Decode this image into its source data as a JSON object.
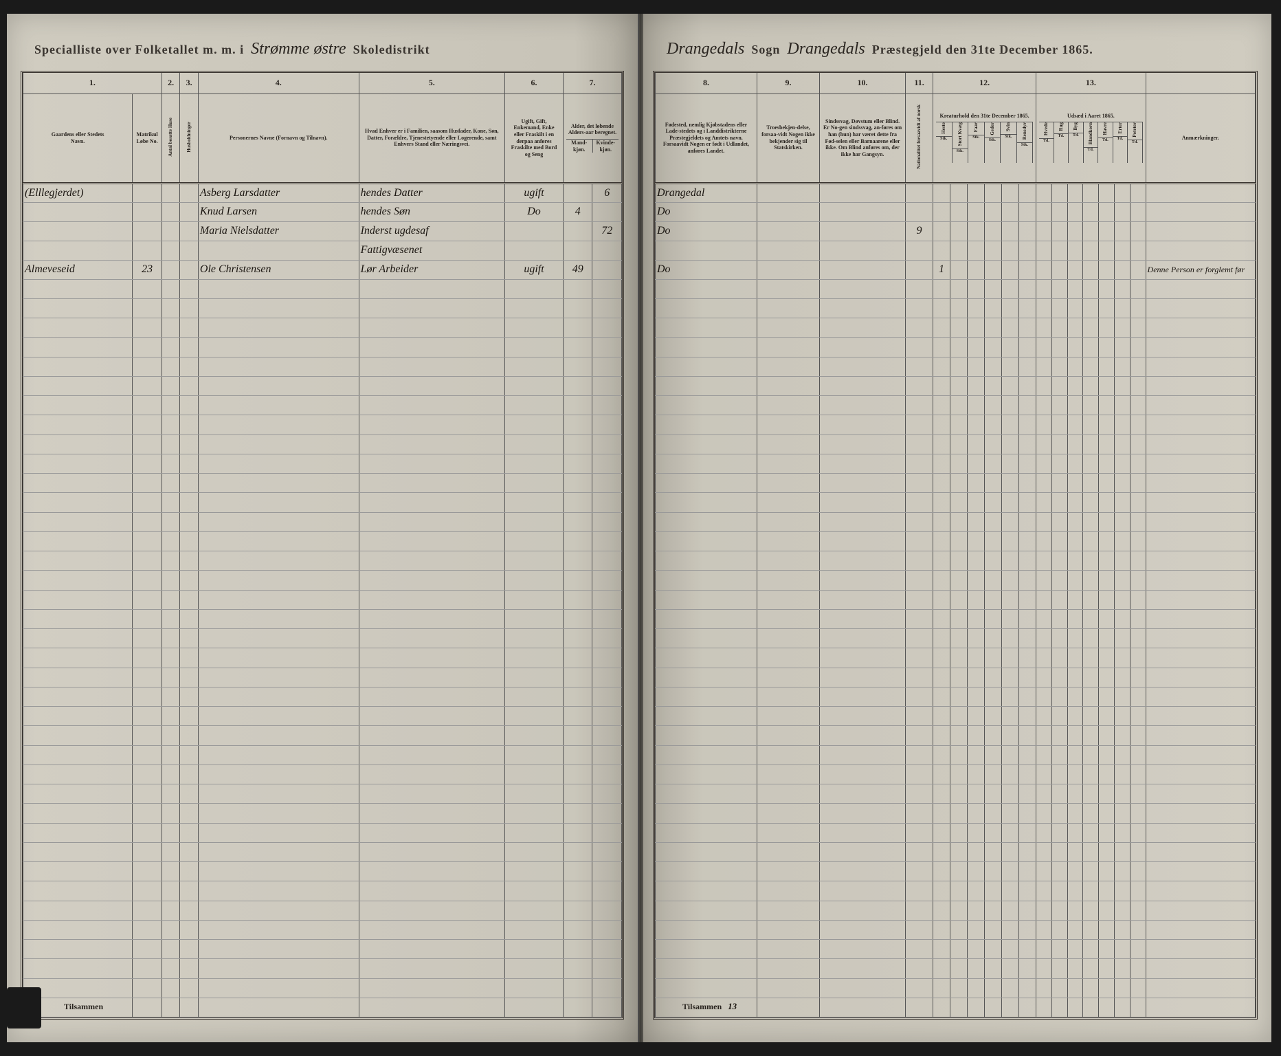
{
  "header_left": {
    "label1": "Specialliste over Folketallet m. m. i",
    "district": "Strømme østre",
    "label2": "Skoledistrikt"
  },
  "header_right": {
    "sogn": "Drangedals",
    "label1": "Sogn",
    "prestegjeld": "Drangedals",
    "label2": "Præstegjeld den 31te December 1865."
  },
  "columns_left": {
    "c1": "1.",
    "c2": "2.",
    "c3": "3.",
    "c4": "4.",
    "c5": "5.",
    "c6": "6.",
    "c7": "7.",
    "h1a": "Gaardens eller Stedets",
    "h1b": "Navn.",
    "h1c": "Matrikul Løbe No.",
    "h2": "Antal bosatte Huse",
    "h3": "Husholdninger",
    "h4": "Personernes Navne (Fornavn og Tilnavn).",
    "h5": "Hvad Enhver er i Familien, saasom Husfader, Kone, Søn, Datter, Forældre, Tjenestetyende eller Logerende, samt Enhvers Stand eller Næringsvei.",
    "h6": "Ugift, Gift, Enkemand, Enke eller Fraskilt i en derpaa anføres Fraskilte med Bord og Seng",
    "h7": "Alder, det løbende Alders-aar beregnet.",
    "h7a": "Mand-kjøn.",
    "h7b": "Kvinde-kjøn."
  },
  "columns_right": {
    "c8": "8.",
    "c9": "9.",
    "c10": "10.",
    "c11": "11.",
    "c12": "12.",
    "c13": "13.",
    "h8": "Fødested, nemlig Kjøbstadens eller Lade-stedets og i Landdistrikterne Præstegjeldets og Amtets navn. Forsaavidt Nogen er født i Udlandet, anføres Landet.",
    "h9": "Troesbekjen-delse, forsaa-vidt Nogen ikke bekjender sig til Statskirken.",
    "h10": "Sindssvag, Døvstum eller Blind. Er No-gen sindssvag, an-føres om han (hun) har været dette fra Fød-selen eller Barnaarene eller ikke. Om Blind anføres om, der ikke har Gangsyn.",
    "h11": "Nationalitet forsaavidt af norsk",
    "h12": "Kreaturhold den 31te December 1865.",
    "h13": "Udsæd i Aaret 1865.",
    "h14": "Anmærkninger.",
    "livestock": [
      "Heste",
      "Stort Kvæg",
      "Faar",
      "Geder",
      "Svin",
      "Rensdyr"
    ],
    "crops": [
      "Hvede",
      "Rug",
      "Byg",
      "Blandkorn",
      "Havre",
      "Erter",
      "Poteter"
    ]
  },
  "rows": [
    {
      "farm": "(Elllegjerdet)",
      "mat": "",
      "h": "",
      "hh": "",
      "name": "Asberg Larsdatter",
      "rel": "hendes Datter",
      "stat": "ugift",
      "m": "",
      "k": "6",
      "birth": "Drangedal",
      "note": ""
    },
    {
      "farm": "",
      "mat": "",
      "h": "",
      "hh": "",
      "name": "Knud Larsen",
      "rel": "hendes Søn",
      "stat": "Do",
      "m": "4",
      "k": "",
      "birth": "Do",
      "note": ""
    },
    {
      "farm": "",
      "mat": "",
      "h": "",
      "hh": "",
      "name": "Maria Nielsdatter",
      "rel": "Inderst ugdesaf",
      "stat": "",
      "m": "",
      "k": "72",
      "birth": "Do",
      "c11": "9",
      "note": ""
    },
    {
      "farm": "",
      "mat": "",
      "h": "",
      "hh": "",
      "name": "",
      "rel": "Fattigvæsenet",
      "stat": "",
      "m": "",
      "k": "",
      "birth": "",
      "note": ""
    },
    {
      "farm": "Almeveseid",
      "mat": "23",
      "h": "",
      "hh": "",
      "name": "Ole Christensen",
      "rel": "Lør Arbeider",
      "stat": "ugift",
      "m": "49",
      "k": "",
      "birth": "Do",
      "l1": "1",
      "note": "Denne Person er forglemt før"
    }
  ],
  "footer_left": "Tilsammen",
  "footer_right": "Tilsammen",
  "footer_num": "13",
  "empty_rows": 38,
  "colors": {
    "paper": "#c8c4b8",
    "ink": "#2a2520",
    "rule": "#555555"
  }
}
